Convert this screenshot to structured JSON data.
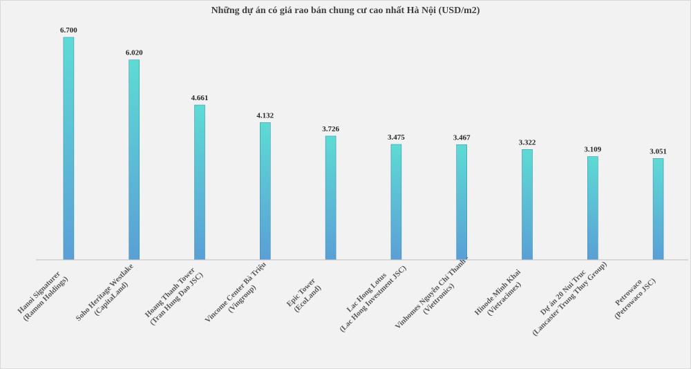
{
  "chart_data": {
    "type": "bar",
    "title": "Những dự án có giá rao bán chung cư cao nhất Hà Nội (USD/m2)",
    "categories": [
      [
        "Hanoi Signaturer",
        "(Ramon Holdings)"
      ],
      [
        "Soho Heritage Westlake",
        "(CapitaLand)"
      ],
      [
        "Hoang Thanh Tower",
        "(Tran Hung Dao JSC)"
      ],
      [
        "Vincome Center Bà Triệu",
        "(Vingroup)"
      ],
      [
        "Epic Tower",
        "(EcoLand)"
      ],
      [
        "Lac Hong Lotus",
        "(Lac Hong Investment JSC)"
      ],
      [
        "Vinhomes Nguyễn Chí Thanh -",
        "(Viettronics)"
      ],
      [
        "Hinode Minh Khai",
        "(Vietracimex)"
      ],
      [
        "Dự án 20 Nui Truc",
        "(Lancaster Trung Thuy Group)"
      ],
      [
        "Petrowaco",
        "(Petrowaco JSC)"
      ]
    ],
    "values": [
      6700,
      6020,
      4661,
      4132,
      3726,
      3475,
      3467,
      3322,
      3109,
      3051
    ],
    "value_labels": [
      "6.700",
      "6.020",
      "4.661",
      "4.132",
      "3.726",
      "3.475",
      "3.467",
      "3.322",
      "3.109",
      "3.051"
    ],
    "ylim": [
      0,
      6700
    ],
    "grid": false,
    "colors": {
      "bar_top": "#5ddbd4",
      "bar_bottom": "#5a9fd6",
      "bar_edge": "#3e8fb0",
      "axis": "#bfbfbf"
    }
  }
}
